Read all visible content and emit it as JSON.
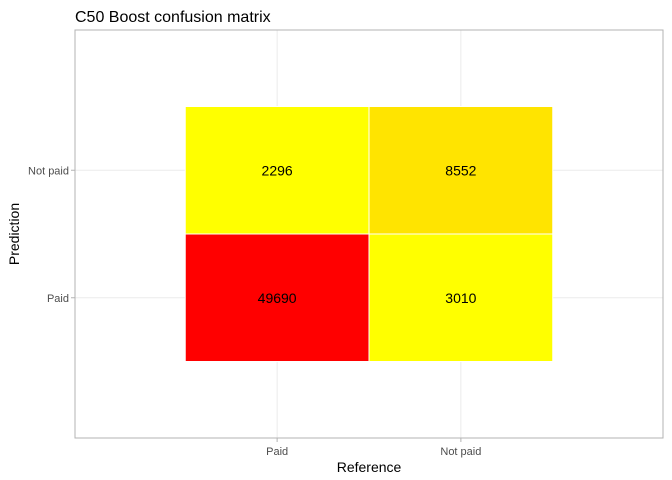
{
  "chart_data": {
    "type": "heatmap",
    "title": "C50 Boost confusion matrix",
    "xlabel": "Reference",
    "ylabel": "Prediction",
    "x_categories": [
      "Paid",
      "Not paid"
    ],
    "y_categories": [
      "Paid",
      "Not paid"
    ],
    "cells": [
      {
        "x": "Paid",
        "y": "Paid",
        "value": 49690,
        "label": "49690",
        "color": "#ff0000"
      },
      {
        "x": "Not paid",
        "y": "Paid",
        "value": 3010,
        "label": "3010",
        "color": "#ffff00"
      },
      {
        "x": "Paid",
        "y": "Not paid",
        "value": 2296,
        "label": "2296",
        "color": "#ffff00"
      },
      {
        "x": "Not paid",
        "y": "Not paid",
        "value": 8552,
        "label": "8552",
        "color": "#ffe400"
      }
    ],
    "grid": true,
    "legend": "none"
  }
}
